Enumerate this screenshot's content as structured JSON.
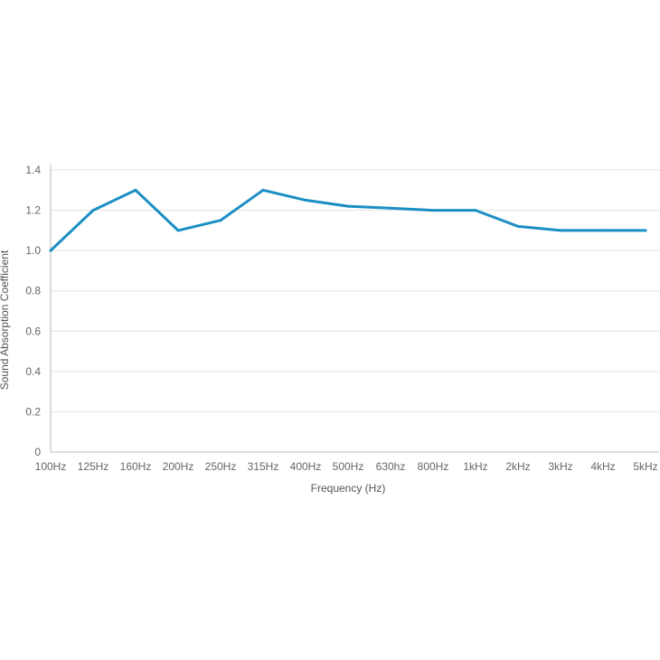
{
  "chart_data": {
    "type": "line",
    "title": "",
    "xlabel": "Frequency (Hz)",
    "ylabel": "Sound Absorption Coefficient",
    "categories": [
      "100Hz",
      "125Hz",
      "160Hz",
      "200Hz",
      "250Hz",
      "315Hz",
      "400Hz",
      "500Hz",
      "630hz",
      "800Hz",
      "1kHz",
      "2kHz",
      "3kHz",
      "4kHz",
      "5kHz"
    ],
    "series": [
      {
        "values": [
          1.0,
          1.2,
          1.3,
          1.1,
          1.15,
          1.3,
          1.25,
          1.22,
          1.21,
          1.2,
          1.2,
          1.12,
          1.1,
          1.1,
          1.1
        ],
        "color": "#1b8fc4"
      }
    ],
    "yticks": [
      "0",
      "0.2",
      "0.4",
      "0.6",
      "0.8",
      "1.0",
      "1.2",
      "1.4"
    ],
    "ylim": [
      0,
      1.4
    ],
    "grid": true,
    "legend": "none",
    "colors": {
      "line": "#1b8fc4",
      "grid": "#e3e3e3",
      "axis": "#bbbbbb",
      "text": "#666666"
    }
  }
}
